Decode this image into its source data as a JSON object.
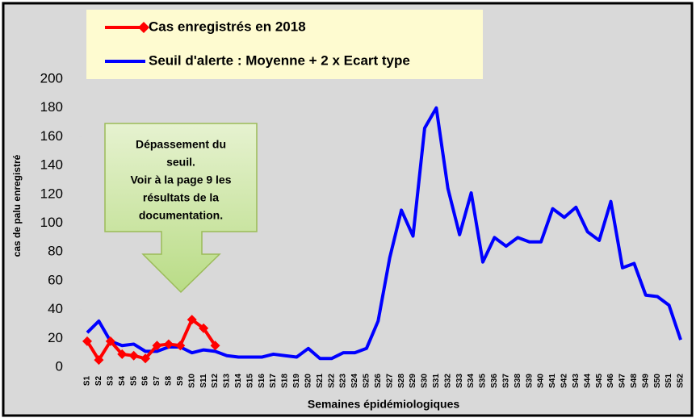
{
  "chart_data": {
    "type": "line",
    "x_label": "Semaines épidémiologiques",
    "y_label": "cas de palu enregistré",
    "categories": [
      "S1",
      "S2",
      "S3",
      "S4",
      "S5",
      "S6",
      "S7",
      "S8",
      "S9",
      "S10",
      "S11",
      "S12",
      "S13",
      "S14",
      "S15",
      "S16",
      "S17",
      "S18",
      "S19",
      "S20",
      "S21",
      "S22",
      "S23",
      "S24",
      "S25",
      "S26",
      "S27",
      "S28",
      "S29",
      "S30",
      "S31",
      "S32",
      "S33",
      "S34",
      "S35",
      "S36",
      "S37",
      "S38",
      "S39",
      "S40",
      "S41",
      "S42",
      "S43",
      "S44",
      "S45",
      "S46",
      "S47",
      "S48",
      "S49",
      "S50",
      "S51",
      "S52"
    ],
    "series": [
      {
        "name": "Cas enregistrés en 2018",
        "color": "#ff0000",
        "marker": "diamond",
        "values": [
          18,
          5,
          18,
          9,
          8,
          6,
          15,
          16,
          15,
          33,
          27,
          15,
          null,
          null,
          null,
          null,
          null,
          null,
          null,
          null,
          null,
          null,
          null,
          null,
          null,
          null,
          null,
          null,
          null,
          null,
          null,
          null,
          null,
          null,
          null,
          null,
          null,
          null,
          null,
          null,
          null,
          null,
          null,
          null,
          null,
          null,
          null,
          null,
          null,
          null,
          null,
          null
        ]
      },
      {
        "name": "Seuil d'alerte : Moyenne + 2 x Ecart type",
        "color": "#0000ff",
        "values": [
          24,
          32,
          18,
          15,
          16,
          11,
          11,
          14,
          14,
          10,
          12,
          11,
          8,
          7,
          7,
          7,
          9,
          8,
          7,
          13,
          6,
          6,
          10,
          10,
          13,
          32,
          76,
          109,
          91,
          166,
          180,
          124,
          92,
          121,
          73,
          90,
          84,
          90,
          87,
          87,
          110,
          104,
          111,
          94,
          88,
          115,
          69,
          72,
          50,
          49,
          43,
          19
        ]
      }
    ],
    "ylim": [
      0,
      200
    ],
    "yticks": [
      0,
      20,
      40,
      60,
      80,
      100,
      120,
      140,
      160,
      180,
      200
    ],
    "grid": false,
    "annotation": [
      "Dépassement du",
      "seuil.",
      "Voir à la page 9 les",
      "résultats de la",
      "documentation."
    ]
  }
}
